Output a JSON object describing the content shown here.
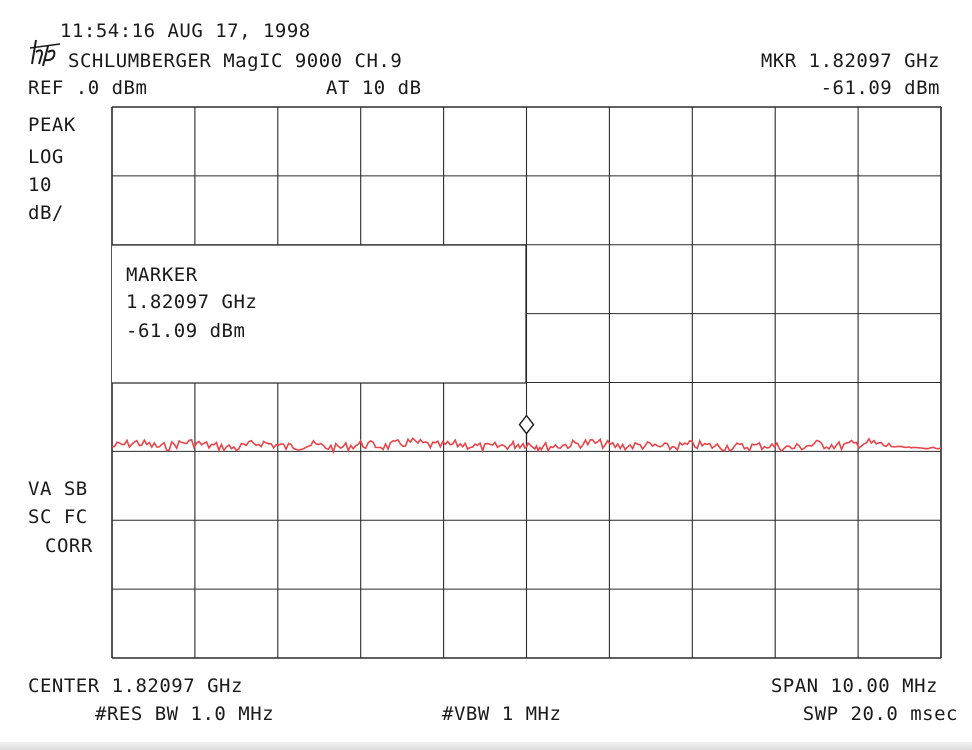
{
  "header": {
    "timestamp": "11:54:16 AUG 17, 1998",
    "instrument": "SCHLUMBERGER MagIC 9000 CH.9",
    "marker_freq": "MKR 1.82097 GHz",
    "marker_level": "-61.09 dBm",
    "ref_level": "REF .0 dBm",
    "attenuation": "AT 10 dB"
  },
  "left_labels": {
    "detector": "PEAK",
    "scale_type": "LOG",
    "scale_value": "10",
    "scale_unit": "dB/",
    "status_1": "VA SB",
    "status_2": "SC FC",
    "status_3": "CORR"
  },
  "marker_box": {
    "title": "MARKER",
    "freq": "1.82097 GHz",
    "level": "-61.09 dBm"
  },
  "footer": {
    "center": "CENTER 1.82097 GHz",
    "span": "SPAN 10.00 MHz",
    "rbw": "#RES BW 1.0 MHz",
    "vbw": "#VBW 1 MHz",
    "sweep": "SWP 20.0 msec"
  },
  "colors": {
    "trace": "#e8454a",
    "grid": "#2b2b2b",
    "text": "#1a1a1a"
  },
  "icons": {
    "logo": "hp-logo-icon",
    "marker": "diamond-marker-icon"
  },
  "chart_data": {
    "type": "line",
    "x_unit": "GHz",
    "y_unit": "dBm",
    "xlim": [
      1.81597,
      1.82597
    ],
    "ylim": [
      -100,
      0
    ],
    "grid": true,
    "grid_divisions": {
      "x": 10,
      "y": 8
    },
    "marker": {
      "x": 1.82097,
      "y": -61.09
    },
    "series": [
      {
        "x": [
          1.81597,
          1.81627,
          1.81657,
          1.81687,
          1.81717,
          1.81747,
          1.81777,
          1.81807,
          1.81837,
          1.81867,
          1.81897,
          1.81927,
          1.81957,
          1.81987,
          1.82017,
          1.82047,
          1.82077,
          1.82097,
          1.82117,
          1.82147,
          1.82177,
          1.82207,
          1.82237,
          1.82267,
          1.82297,
          1.82327,
          1.82357,
          1.82387,
          1.82417,
          1.82447,
          1.82477,
          1.82507,
          1.82537,
          1.82567,
          1.82597
        ],
        "y": [
          -61.6,
          -60.9,
          -61.8,
          -60.8,
          -61.5,
          -61.9,
          -60.9,
          -61.7,
          -61.3,
          -61.9,
          -61.2,
          -61.6,
          -60.8,
          -61.5,
          -61.2,
          -61.8,
          -61.4,
          -61.09,
          -61.7,
          -61.3,
          -60.9,
          -61.6,
          -61.4,
          -61.8,
          -61.3,
          -61.6,
          -61.7,
          -61.4,
          -61.9,
          -61.2,
          -61.5,
          -60.9,
          -61.6,
          -61.9,
          -61.9
        ]
      }
    ]
  }
}
